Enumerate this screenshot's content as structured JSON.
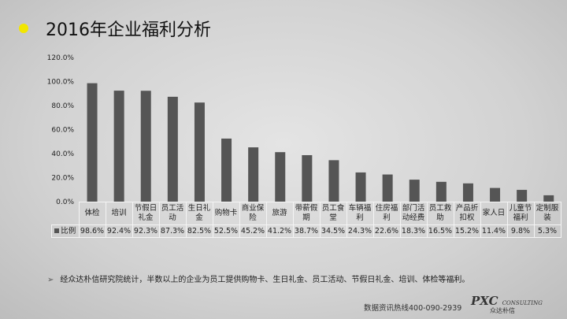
{
  "title": "2016年企业福利分析",
  "chart_data": {
    "type": "bar",
    "categories": [
      "体检",
      "培训",
      "节假日礼金",
      "员工活动",
      "生日礼金",
      "购物卡",
      "商业保险",
      "旅游",
      "带薪假期",
      "员工食堂",
      "车辆福利",
      "住房福利",
      "部门活动经费",
      "员工救助",
      "产品折扣权",
      "家人日",
      "儿童节福利",
      "定制服装"
    ],
    "category_lines": [
      [
        "体检"
      ],
      [
        "培训"
      ],
      [
        "节假日",
        "礼金"
      ],
      [
        "员工活",
        "动"
      ],
      [
        "生日礼",
        "金"
      ],
      [
        "购物卡"
      ],
      [
        "商业保",
        "险"
      ],
      [
        "旅游"
      ],
      [
        "带薪假",
        "期"
      ],
      [
        "员工食",
        "堂"
      ],
      [
        "车辆福",
        "利"
      ],
      [
        "住房福",
        "利"
      ],
      [
        "部门活",
        "动经费"
      ],
      [
        "员工救",
        "助"
      ],
      [
        "产品折",
        "扣权"
      ],
      [
        "家人日"
      ],
      [
        "儿童节",
        "福利"
      ],
      [
        "定制服",
        "装"
      ]
    ],
    "series": [
      {
        "name": "比例",
        "values": [
          98.6,
          92.4,
          92.3,
          87.3,
          82.5,
          52.5,
          45.2,
          41.2,
          38.7,
          34.5,
          24.3,
          22.6,
          18.3,
          16.5,
          15.2,
          11.4,
          9.8,
          5.3
        ]
      }
    ],
    "value_labels": [
      "98.6%",
      "92.4%",
      "92.3%",
      "87.3%",
      "82.5%",
      "52.5%",
      "45.2%",
      "41.2%",
      "38.7%",
      "34.5%",
      "24.3%",
      "22.6%",
      "18.3%",
      "16.5%",
      "15.2%",
      "11.4%",
      "9.8%",
      "5.3%"
    ],
    "yticks": [
      "0.0%",
      "20.0%",
      "40.0%",
      "60.0%",
      "80.0%",
      "100.0%",
      "120.0%"
    ],
    "ylim": [
      0,
      120
    ],
    "grid": false,
    "legend": "data-table",
    "bar_color": "#555555"
  },
  "footnote": "经众达朴信研究院统计，半数以上的企业为员工提供购物卡、生日礼金、员工活动、节假日礼金、培训、体检等福利。",
  "footer": {
    "hotline": "数据资讯热线400-090-2939",
    "logo_main": "PXC",
    "logo_sub": "CONSULTING",
    "logo_cn": "众达朴信"
  }
}
